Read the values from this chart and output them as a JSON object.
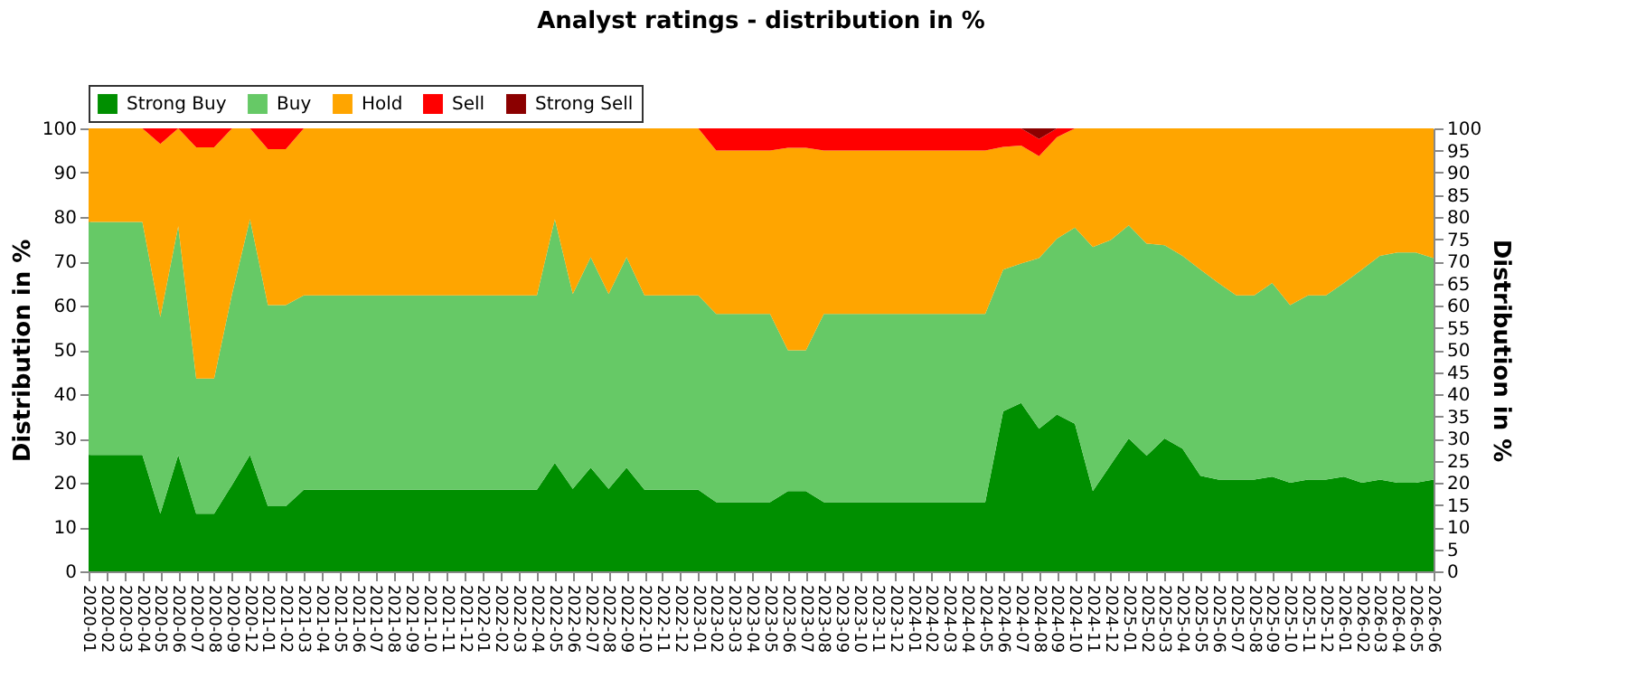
{
  "chart_data": {
    "type": "area",
    "title": "Analyst ratings - distribution in %",
    "categories": [
      "2020-01",
      "2020-02",
      "2020-03",
      "2020-04",
      "2020-05",
      "2020-06",
      "2020-07",
      "2020-08",
      "2020-09",
      "2020-12",
      "2021-01",
      "2021-02",
      "2021-03",
      "2021-04",
      "2021-05",
      "2021-06",
      "2021-07",
      "2021-08",
      "2021-09",
      "2021-10",
      "2021-11",
      "2021-12",
      "2022-01",
      "2022-02",
      "2022-03",
      "2022-04",
      "2022-05",
      "2022-06",
      "2022-07",
      "2022-08",
      "2022-09",
      "2022-10",
      "2022-11",
      "2022-12",
      "2023-01",
      "2023-02",
      "2023-03",
      "2023-04",
      "2023-05",
      "2023-06",
      "2023-07",
      "2023-08",
      "2023-09",
      "2023-10",
      "2023-11",
      "2023-12",
      "2024-01",
      "2024-02",
      "2024-03",
      "2024-04",
      "2024-05",
      "2024-06",
      "2024-07",
      "2024-08",
      "2024-09",
      "2024-10",
      "2024-11",
      "2024-12",
      "2025-01",
      "2025-02",
      "2025-03",
      "2025-04",
      "2025-05",
      "2025-06",
      "2025-07",
      "2025-08",
      "2025-09",
      "2025-10",
      "2025-11",
      "2025-12",
      "2026-01",
      "2026-02",
      "2026-03",
      "2026-04",
      "2026-05",
      "2026-06"
    ],
    "series": [
      {
        "name": "Strong Buy",
        "color": "#008f00",
        "values": [
          26.3,
          26.3,
          26.3,
          26.3,
          13.0,
          26.3,
          13.0,
          13.0,
          19.5,
          26.3,
          14.7,
          14.7,
          18.4,
          18.4,
          18.4,
          18.4,
          18.4,
          18.4,
          18.4,
          18.4,
          18.4,
          18.4,
          18.4,
          18.4,
          18.4,
          18.4,
          24.5,
          18.6,
          23.4,
          18.6,
          23.4,
          18.4,
          18.4,
          18.4,
          18.4,
          15.6,
          15.6,
          15.6,
          15.6,
          18.1,
          18.1,
          15.6,
          15.6,
          15.6,
          15.6,
          15.6,
          15.6,
          15.6,
          15.6,
          15.6,
          15.6,
          36.1,
          38.0,
          32.2,
          35.4,
          33.3,
          18.1,
          24.1,
          30.0,
          26.1,
          30.0,
          27.7,
          21.6,
          20.7,
          20.7,
          20.7,
          21.4,
          20.0,
          20.7,
          20.7,
          21.4,
          20.0,
          20.7,
          20.0,
          20.0,
          20.7
        ]
      },
      {
        "name": "Buy",
        "color": "#66c966",
        "values": [
          52.6,
          52.6,
          52.6,
          52.6,
          44.4,
          51.6,
          30.5,
          30.5,
          43.1,
          53.2,
          45.4,
          45.4,
          43.9,
          43.9,
          43.9,
          43.9,
          43.9,
          43.9,
          43.9,
          43.9,
          43.9,
          43.9,
          43.9,
          43.9,
          43.9,
          43.9,
          55.0,
          44.0,
          47.5,
          44.0,
          47.5,
          43.9,
          43.9,
          43.9,
          43.9,
          42.5,
          42.5,
          42.5,
          42.5,
          31.8,
          31.8,
          42.5,
          42.5,
          42.5,
          42.5,
          42.5,
          42.5,
          42.5,
          42.5,
          42.5,
          42.5,
          32.0,
          31.5,
          38.5,
          39.7,
          44.3,
          55.1,
          50.7,
          48.1,
          47.9,
          43.6,
          43.5,
          46.5,
          44.4,
          41.6,
          41.6,
          43.7,
          40.1,
          41.6,
          41.6,
          43.7,
          48.1,
          50.5,
          52.0,
          52.0,
          50.0
        ]
      },
      {
        "name": "Hold",
        "color": "#ffa500",
        "values": [
          21.1,
          21.1,
          21.1,
          21.1,
          39.1,
          22.1,
          52.2,
          52.2,
          37.4,
          20.5,
          35.2,
          35.2,
          37.7,
          37.7,
          37.7,
          37.7,
          37.7,
          37.7,
          37.7,
          37.7,
          37.7,
          37.7,
          37.7,
          37.7,
          37.7,
          37.7,
          20.5,
          37.4,
          29.1,
          37.4,
          29.1,
          37.7,
          37.7,
          37.7,
          37.7,
          36.9,
          36.9,
          36.9,
          36.9,
          45.7,
          45.7,
          36.9,
          36.9,
          36.9,
          36.9,
          36.9,
          36.9,
          36.9,
          36.9,
          36.9,
          36.9,
          27.7,
          26.6,
          23.0,
          22.9,
          22.4,
          26.8,
          25.2,
          21.9,
          26.0,
          26.4,
          28.8,
          31.9,
          34.9,
          37.7,
          37.7,
          34.9,
          39.9,
          37.7,
          37.7,
          34.9,
          31.9,
          28.8,
          28.0,
          28.0,
          29.3
        ]
      },
      {
        "name": "Sell",
        "color": "#ff0000",
        "values": [
          0,
          0,
          0,
          0,
          3.5,
          0,
          4.3,
          4.3,
          0,
          0,
          4.7,
          4.7,
          0,
          0,
          0,
          0,
          0,
          0,
          0,
          0,
          0,
          0,
          0,
          0,
          0,
          0,
          0,
          0,
          0,
          0,
          0,
          0,
          0,
          0,
          0,
          5.0,
          5.0,
          5.0,
          5.0,
          4.4,
          4.4,
          5.0,
          5.0,
          5.0,
          5.0,
          5.0,
          5.0,
          5.0,
          5.0,
          5.0,
          5.0,
          4.2,
          3.9,
          3.9,
          2.0,
          0,
          0,
          0,
          0,
          0,
          0,
          0,
          0,
          0,
          0,
          0,
          0,
          0,
          0,
          0,
          0,
          0,
          0,
          0,
          0,
          0
        ]
      },
      {
        "name": "Strong Sell",
        "color": "#8b0000",
        "values": [
          0,
          0,
          0,
          0,
          0,
          0,
          0,
          0,
          0,
          0,
          0,
          0,
          0,
          0,
          0,
          0,
          0,
          0,
          0,
          0,
          0,
          0,
          0,
          0,
          0,
          0,
          0,
          0,
          0,
          0,
          0,
          0,
          0,
          0,
          0,
          0,
          0,
          0,
          0,
          0,
          0,
          0,
          0,
          0,
          0,
          0,
          0,
          0,
          0,
          0,
          0,
          0,
          0,
          2.4,
          0,
          0,
          0,
          0,
          0,
          0,
          0,
          0,
          0,
          0,
          0,
          0,
          0,
          0,
          0,
          0,
          0,
          0,
          0,
          0,
          0,
          0
        ]
      }
    ],
    "stacked": true,
    "ylabel": "Distribution in %",
    "y2label": "Distribution in %",
    "ylim": [
      0,
      100
    ],
    "yticks": [
      0,
      10,
      20,
      30,
      40,
      50,
      60,
      70,
      80,
      90,
      100
    ],
    "y2lim": [
      0,
      100
    ],
    "y2ticks": [
      0,
      5,
      10,
      15,
      20,
      25,
      30,
      35,
      40,
      45,
      50,
      55,
      60,
      65,
      70,
      75,
      80,
      85,
      90,
      95,
      100
    ],
    "grid": "y",
    "legend": "top left"
  }
}
